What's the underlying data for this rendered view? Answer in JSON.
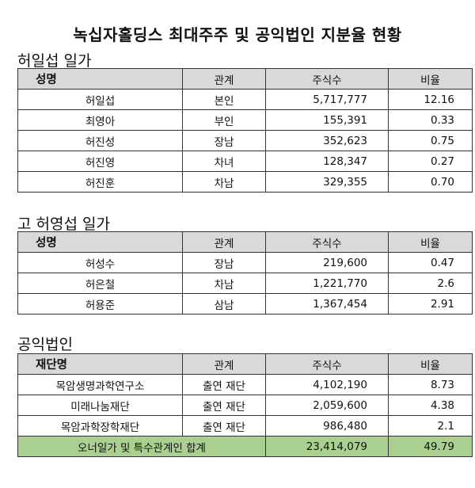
{
  "title": "녹십자홀딩스 최대주주 및 공익법인 지분율 현황",
  "sections": [
    {
      "heading": "허일섭 일가",
      "columns": [
        "성명",
        "관계",
        "주식수",
        "비율"
      ],
      "rows": [
        [
          "허일섭",
          "본인",
          "5,717,777",
          "12.16"
        ],
        [
          "최영아",
          "부인",
          "155,391",
          "0.33"
        ],
        [
          "허진성",
          "장남",
          "352,623",
          "0.75"
        ],
        [
          "허진영",
          "차녀",
          "128,347",
          "0.27"
        ],
        [
          "허진훈",
          "차남",
          "329,355",
          "0.70"
        ]
      ]
    },
    {
      "heading": "고 허영섭 일가",
      "columns": [
        "성명",
        "관계",
        "주식수",
        "비율"
      ],
      "rows": [
        [
          "허성수",
          "장남",
          "219,600",
          "0.47"
        ],
        [
          "허은철",
          "차남",
          "1,221,770",
          "2.6"
        ],
        [
          "허용준",
          "삼남",
          "1,367,454",
          "2.91"
        ]
      ]
    },
    {
      "heading": "공익법인",
      "columns": [
        "재단명",
        "관계",
        "주식수",
        "비율"
      ],
      "rows": [
        [
          "목암생명과학연구소",
          "출연 재단",
          "4,102,190",
          "8.73"
        ],
        [
          "미래나눔재단",
          "출연 재단",
          "2,059,600",
          "4.38"
        ],
        [
          "목암과학장학재단",
          "출연 재단",
          "986,480",
          "2.1"
        ]
      ],
      "total": [
        "오너일가 및 특수관계인 합계",
        "23,414,079",
        "49.79"
      ]
    }
  ]
}
